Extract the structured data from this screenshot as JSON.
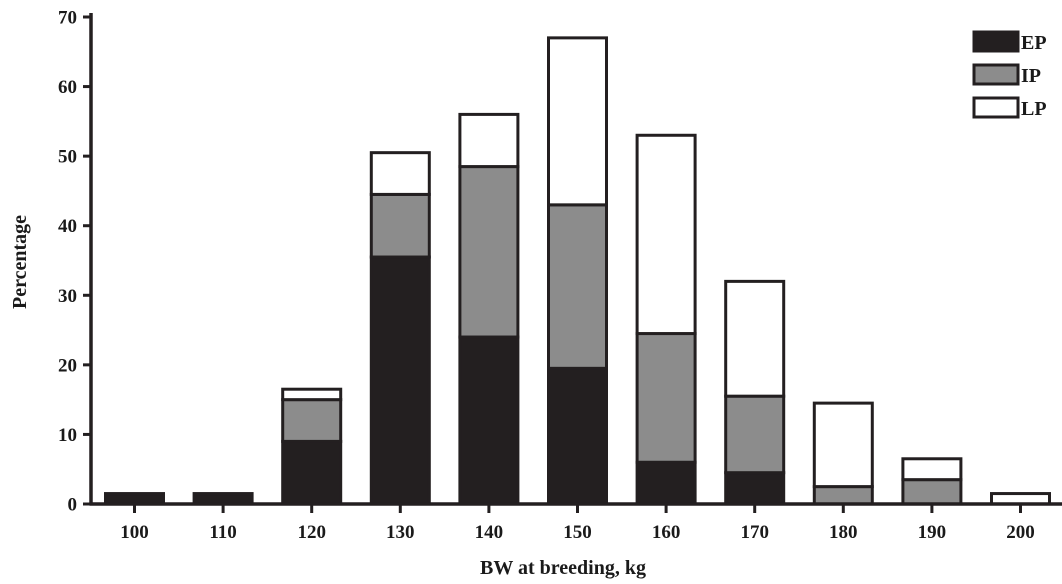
{
  "chart_data": {
    "type": "bar",
    "stacked": true,
    "title": "",
    "xlabel": "BW at breeding, kg",
    "ylabel": "Percentage",
    "ylim": [
      0,
      70
    ],
    "yticks": [
      "0",
      "10",
      "20",
      "30",
      "40",
      "50",
      "60",
      "70"
    ],
    "categories": [
      "100",
      "110",
      "120",
      "130",
      "140",
      "150",
      "160",
      "170",
      "180",
      "190",
      "200"
    ],
    "series": [
      {
        "name": "EP",
        "color": "#231f20",
        "values": [
          1.5,
          1.5,
          9,
          35.5,
          24,
          19.5,
          6,
          4.5,
          0,
          0,
          0
        ]
      },
      {
        "name": "IP",
        "color": "#8c8c8c",
        "values": [
          0,
          0,
          6,
          9,
          24.5,
          23.5,
          18.5,
          11,
          2.5,
          3.5,
          0
        ]
      },
      {
        "name": "LP",
        "color": "#ffffff",
        "values": [
          0,
          0,
          1.5,
          6,
          7.5,
          24,
          28.5,
          16.5,
          12,
          3,
          1.5
        ]
      }
    ],
    "legend_position": "top-right",
    "grid": false
  }
}
